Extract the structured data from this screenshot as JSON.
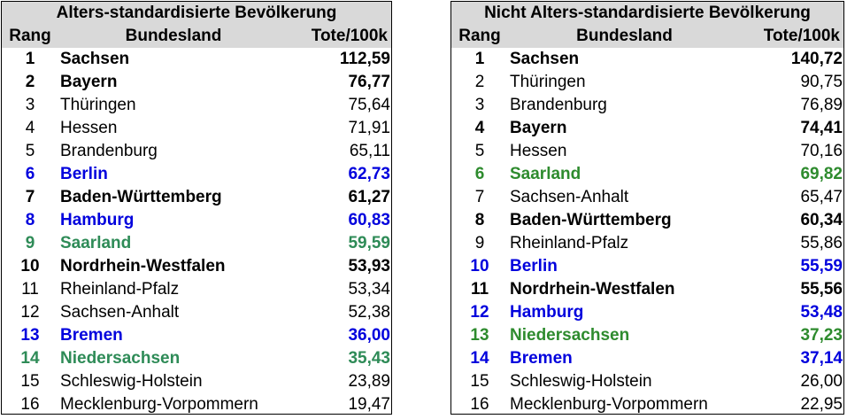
{
  "left": {
    "title": "Alters-standardisierte Bevölkerung",
    "headers": {
      "rank": "Rang",
      "state": "Bundesland",
      "value": "Tote/100k"
    },
    "rows": [
      {
        "rank": "1",
        "state": "Sachsen",
        "value": "112,59",
        "style": "bold"
      },
      {
        "rank": "2",
        "state": "Bayern",
        "value": "76,77",
        "style": "bold"
      },
      {
        "rank": "3",
        "state": "Thüringen",
        "value": "75,64",
        "style": ""
      },
      {
        "rank": "4",
        "state": "Hessen",
        "value": "71,91",
        "style": ""
      },
      {
        "rank": "5",
        "state": "Brandenburg",
        "value": "65,11",
        "style": ""
      },
      {
        "rank": "6",
        "state": "Berlin",
        "value": "62,73",
        "style": "blue"
      },
      {
        "rank": "7",
        "state": "Baden-Württemberg",
        "value": "61,27",
        "style": "bold"
      },
      {
        "rank": "8",
        "state": "Hamburg",
        "value": "60,83",
        "style": "blue"
      },
      {
        "rank": "9",
        "state": "Saarland",
        "value": "59,59",
        "style": "green"
      },
      {
        "rank": "10",
        "state": "Nordrhein-Westfalen",
        "value": "53,93",
        "style": "bold"
      },
      {
        "rank": "11",
        "state": "Rheinland-Pfalz",
        "value": "53,34",
        "style": ""
      },
      {
        "rank": "12",
        "state": "Sachsen-Anhalt",
        "value": "52,38",
        "style": ""
      },
      {
        "rank": "13",
        "state": "Bremen",
        "value": "36,00",
        "style": "blue"
      },
      {
        "rank": "14",
        "state": "Niedersachsen",
        "value": "35,43",
        "style": "green"
      },
      {
        "rank": "15",
        "state": "Schleswig-Holstein",
        "value": "23,89",
        "style": ""
      },
      {
        "rank": "16",
        "state": "Mecklenburg-Vorpommern",
        "value": "19,47",
        "style": ""
      }
    ]
  },
  "right": {
    "title": "Nicht Alters-standardisierte Bevölkerung",
    "headers": {
      "rank": "Rang",
      "state": "Bundesland",
      "value": "Tote/100k"
    },
    "rows": [
      {
        "rank": "1",
        "state": "Sachsen",
        "value": "140,72",
        "style": "bold"
      },
      {
        "rank": "2",
        "state": "Thüringen",
        "value": "90,75",
        "style": ""
      },
      {
        "rank": "3",
        "state": "Brandenburg",
        "value": "76,89",
        "style": ""
      },
      {
        "rank": "4",
        "state": "Bayern",
        "value": "74,41",
        "style": "bold"
      },
      {
        "rank": "5",
        "state": "Hessen",
        "value": "70,16",
        "style": ""
      },
      {
        "rank": "6",
        "state": "Saarland",
        "value": "69,82",
        "style": "green"
      },
      {
        "rank": "7",
        "state": "Sachsen-Anhalt",
        "value": "65,47",
        "style": ""
      },
      {
        "rank": "8",
        "state": "Baden-Württemberg",
        "value": "60,34",
        "style": "bold"
      },
      {
        "rank": "9",
        "state": "Rheinland-Pfalz",
        "value": "55,86",
        "style": ""
      },
      {
        "rank": "10",
        "state": "Berlin",
        "value": "55,59",
        "style": "blue"
      },
      {
        "rank": "11",
        "state": "Nordrhein-Westfalen",
        "value": "55,56",
        "style": "bold"
      },
      {
        "rank": "12",
        "state": "Hamburg",
        "value": "53,48",
        "style": "blue"
      },
      {
        "rank": "13",
        "state": "Niedersachsen",
        "value": "37,23",
        "style": "green"
      },
      {
        "rank": "14",
        "state": "Bremen",
        "value": "37,14",
        "style": "blue"
      },
      {
        "rank": "15",
        "state": "Schleswig-Holstein",
        "value": "26,00",
        "style": ""
      },
      {
        "rank": "16",
        "state": "Mecklenburg-Vorpommern",
        "value": "22,95",
        "style": ""
      }
    ]
  },
  "colors": {
    "blue": "#0000dd",
    "green": "#2e8b57",
    "header_bg": "#d9d9d9"
  }
}
